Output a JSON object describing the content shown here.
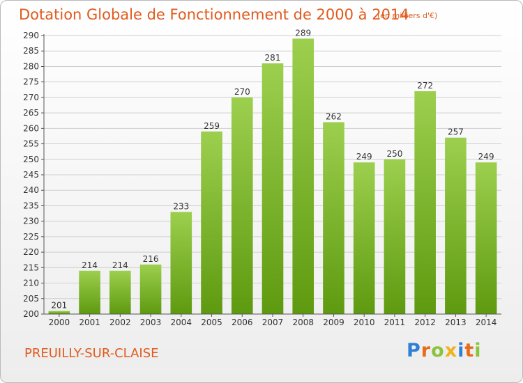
{
  "title": "Dotation Globale de Fonctionnement de 2000 à 2014",
  "subtitle": "(en milliers d'€)",
  "commune": "PREUILLY-SUR-CLAISE",
  "logo": {
    "p": "P",
    "r": "r",
    "o": "o",
    "x": "x",
    "i1": "i",
    "t": "t",
    "i2": "i"
  },
  "colors": {
    "accent": "#e05a1c",
    "bar_top": "#9ccf4e",
    "bar_bottom": "#5e9a10",
    "grid": "#cfcfcf"
  },
  "chart_data": {
    "type": "bar",
    "categories": [
      "2000",
      "2001",
      "2002",
      "2003",
      "2004",
      "2005",
      "2006",
      "2007",
      "2008",
      "2009",
      "2010",
      "2011",
      "2012",
      "2013",
      "2014"
    ],
    "values": [
      201,
      214,
      214,
      216,
      233,
      259,
      270,
      281,
      289,
      262,
      249,
      250,
      272,
      257,
      249
    ],
    "title": "Dotation Globale de Fonctionnement de 2000 à 2014",
    "subtitle": "(en milliers d'€)",
    "ylim": [
      200,
      290
    ],
    "ytick_step": 5,
    "grid": true,
    "legend": "none"
  }
}
